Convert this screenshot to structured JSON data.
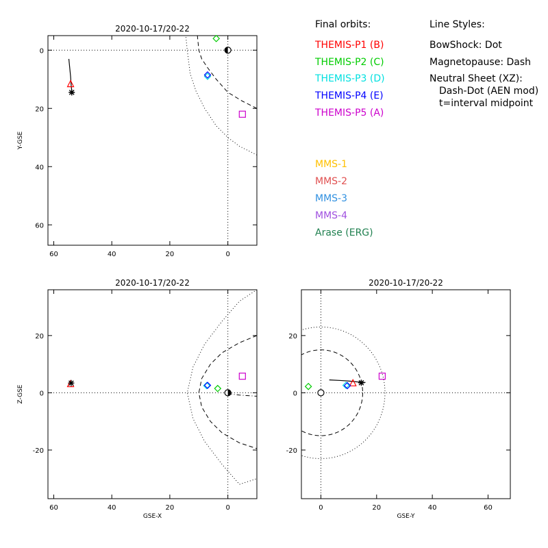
{
  "chart_data": [
    {
      "panel": "xy",
      "type": "scatter",
      "title": "2020-10-17/20-22",
      "xlabel": "",
      "ylabel": "Y-GSE",
      "x_axis": "GSE-X",
      "y_axis": "GSE-Y",
      "xlim": [
        62,
        -10
      ],
      "ylim": [
        -5,
        67
      ],
      "x_ticks": [
        60,
        40,
        20,
        0
      ],
      "y_ticks": [
        0,
        20,
        40,
        60
      ],
      "orbit_track": [
        [
          54.8,
          3.0
        ],
        [
          54.5,
          6
        ],
        [
          54.2,
          9
        ],
        [
          54,
          12
        ],
        [
          53.7,
          15
        ]
      ],
      "boundaries": {
        "bow_shock": {
          "style": "dotted",
          "points": [
            [
              -10,
              36
            ],
            [
              -4,
              33
            ],
            [
              0,
              30
            ],
            [
              4,
              26
            ],
            [
              8,
              20
            ],
            [
              11,
              14
            ],
            [
              13,
              8
            ],
            [
              14,
              0
            ],
            [
              14.5,
              -5
            ]
          ]
        },
        "magnetopause": {
          "style": "dashed",
          "points": [
            [
              -10,
              20
            ],
            [
              -5,
              17.5
            ],
            [
              0,
              14.5
            ],
            [
              4,
              10
            ],
            [
              7,
              6
            ],
            [
              9,
              3
            ],
            [
              10,
              0
            ],
            [
              10.5,
              -5
            ]
          ]
        }
      },
      "earth": [
        0,
        0
      ],
      "points": [
        {
          "name": "THEMIS-P1 (B)",
          "symbol": "triangle",
          "color": "#ff0000",
          "x": 54.2,
          "y": 11.5
        },
        {
          "name": "THEMIS-P2 (C)",
          "symbol": "diamond",
          "color": "#00cc00",
          "x": 4,
          "y": -4
        },
        {
          "name": "THEMIS-P3 (D)",
          "symbol": "diamond",
          "color": "#00e0e0",
          "x": 7,
          "y": 9
        },
        {
          "name": "THEMIS-P4 (E)",
          "symbol": "diamond",
          "color": "#0000ff",
          "x": 7,
          "y": 8.5
        },
        {
          "name": "THEMIS-P5 (A)",
          "symbol": "square",
          "color": "#cc00cc",
          "x": -5,
          "y": 22
        },
        {
          "name": "Arase (ERG)",
          "symbol": "star",
          "color": "#000000",
          "x": 53.8,
          "y": 14.5
        }
      ]
    },
    {
      "panel": "xz",
      "type": "scatter",
      "title": "2020-10-17/20-22",
      "xlabel": "GSE-X",
      "ylabel": "Z-GSE",
      "xlim": [
        62,
        -10
      ],
      "ylim": [
        -37,
        36
      ],
      "x_ticks": [
        60,
        40,
        20,
        0
      ],
      "y_ticks": [
        -20,
        0,
        20
      ],
      "boundaries": {
        "bow_shock": {
          "style": "dotted",
          "points": [
            [
              -10,
              36
            ],
            [
              -4,
              32
            ],
            [
              2,
              25
            ],
            [
              8,
              17
            ],
            [
              12,
              9
            ],
            [
              14,
              0
            ],
            [
              12,
              -9
            ],
            [
              8,
              -17
            ],
            [
              2,
              -25
            ],
            [
              -4,
              -32
            ],
            [
              -10,
              -30
            ]
          ]
        },
        "magnetopause": {
          "style": "dashed",
          "points": [
            [
              -10,
              20
            ],
            [
              -4,
              17.5
            ],
            [
              2,
              14
            ],
            [
              6,
              10
            ],
            [
              9,
              5
            ],
            [
              10,
              0
            ],
            [
              9,
              -5
            ],
            [
              6,
              -10
            ],
            [
              2,
              -14
            ],
            [
              -4,
              -17.5
            ],
            [
              -10,
              -19.5
            ]
          ]
        },
        "neutral_sheet": {
          "style": "dash-dot",
          "points": [
            [
              0,
              -0.3
            ],
            [
              -4,
              -0.8
            ],
            [
              -10,
              -1.2
            ]
          ]
        }
      },
      "earth": [
        0,
        0
      ],
      "points": [
        {
          "name": "THEMIS-P1 (B)",
          "symbol": "triangle",
          "color": "#ff0000",
          "x": 54.2,
          "y": 3.2
        },
        {
          "name": "THEMIS-P2 (C)",
          "symbol": "diamond",
          "color": "#00cc00",
          "x": 3.5,
          "y": 1.5
        },
        {
          "name": "THEMIS-P3 (D)",
          "symbol": "diamond",
          "color": "#00e0e0",
          "x": 7.3,
          "y": 2.5
        },
        {
          "name": "THEMIS-P4 (E)",
          "symbol": "diamond",
          "color": "#0000ff",
          "x": 7,
          "y": 2.6
        },
        {
          "name": "THEMIS-P5 (A)",
          "symbol": "square",
          "color": "#cc00cc",
          "x": -5,
          "y": 5.8
        },
        {
          "name": "Arase (ERG)",
          "symbol": "star",
          "color": "#000000",
          "x": 54,
          "y": 3.4
        }
      ]
    },
    {
      "panel": "yz",
      "type": "scatter",
      "title": "2020-10-17/20-22",
      "xlabel": "GSE-Y",
      "ylabel": "",
      "xlim": [
        -7,
        68
      ],
      "ylim": [
        -37,
        36
      ],
      "x_ticks": [
        0,
        20,
        40,
        60
      ],
      "y_ticks": [
        -20,
        0,
        20
      ],
      "orbit_track": [
        [
          3,
          4.5
        ],
        [
          7,
          4.3
        ],
        [
          10,
          4.1
        ],
        [
          13,
          3.8
        ],
        [
          16,
          3.6
        ]
      ],
      "boundaries": {
        "bow_shock": {
          "style": "dotted",
          "circle_radius": 23
        },
        "magnetopause": {
          "style": "dashed",
          "circle_radius": 15
        }
      },
      "earth": [
        0,
        0
      ],
      "points": [
        {
          "name": "THEMIS-P1 (B)",
          "symbol": "triangle",
          "color": "#ff0000",
          "x": 11.5,
          "y": 3.5
        },
        {
          "name": "THEMIS-P2 (C)",
          "symbol": "diamond",
          "color": "#00cc00",
          "x": -4.5,
          "y": 2.2
        },
        {
          "name": "THEMIS-P3 (D)",
          "symbol": "diamond",
          "color": "#00e0e0",
          "x": 9,
          "y": 2.6
        },
        {
          "name": "THEMIS-P4 (E)",
          "symbol": "diamond",
          "color": "#0000ff",
          "x": 9.5,
          "y": 2.5
        },
        {
          "name": "THEMIS-P5 (A)",
          "symbol": "square",
          "color": "#cc00cc",
          "x": 22,
          "y": 5.8
        },
        {
          "name": "Arase (ERG)",
          "symbol": "star",
          "color": "#000000",
          "x": 14.5,
          "y": 3.5
        }
      ]
    }
  ],
  "legend": {
    "orbits_title": "Final orbits:",
    "orbits": [
      {
        "label": "THEMIS-P1 (B)",
        "color": "#ff0000"
      },
      {
        "label": "THEMIS-P2 (C)",
        "color": "#00cc00"
      },
      {
        "label": "THEMIS-P3 (D)",
        "color": "#00e0e0"
      },
      {
        "label": "THEMIS-P4 (E)",
        "color": "#0000ff"
      },
      {
        "label": "THEMIS-P5 (A)",
        "color": "#cc00cc"
      }
    ],
    "mms": [
      {
        "label": "MMS-1",
        "color": "#ffc000"
      },
      {
        "label": "MMS-2",
        "color": "#e05050"
      },
      {
        "label": "MMS-3",
        "color": "#3090e0"
      },
      {
        "label": "MMS-4",
        "color": "#a050e0"
      },
      {
        "label": "Arase (ERG)",
        "color": "#208050"
      }
    ],
    "styles_title": "Line Styles:",
    "styles": [
      "BowShock: Dot",
      "Magnetopause: Dash",
      "Neutral Sheet (XZ):",
      "Dash-Dot (AEN mod)",
      "t=interval midpoint"
    ]
  }
}
